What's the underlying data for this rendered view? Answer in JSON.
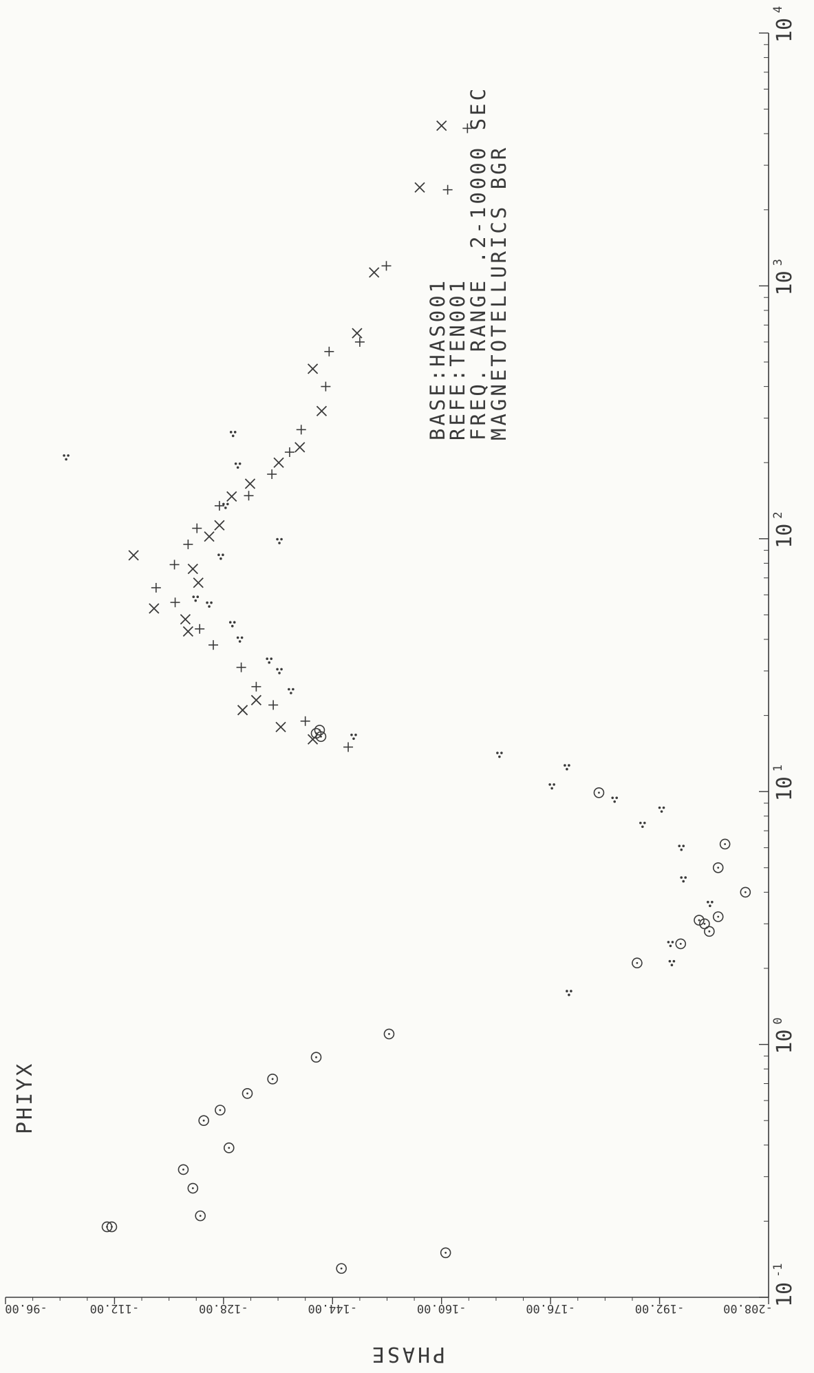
{
  "page": {
    "panel_label": "PHIYX",
    "info_lines": [
      "BASE:HAS001",
      "REFE:TEN001",
      "FREQ. RANGE .2-10000 SEC",
      "MAGNETOTELLURICS BGR"
    ]
  },
  "chart_data": {
    "type": "scatter",
    "title": "",
    "xlabel": "",
    "ylabel": "PHASE",
    "x_scale": "log",
    "xlim": [
      0.1,
      10000
    ],
    "ylim": [
      -208,
      -96
    ],
    "x_ticks": [
      {
        "value": 0.1,
        "base": "10",
        "exp": "-1"
      },
      {
        "value": 1,
        "base": "10",
        "exp": "0"
      },
      {
        "value": 10,
        "base": "10",
        "exp": "1"
      },
      {
        "value": 100,
        "base": "10",
        "exp": "2"
      },
      {
        "value": 1000,
        "base": "10",
        "exp": "3"
      },
      {
        "value": 10000,
        "base": "10",
        "exp": "4"
      }
    ],
    "y_ticks": [
      {
        "value": -96,
        "label": "-96.00"
      },
      {
        "value": -112,
        "label": "-112.00"
      },
      {
        "value": -128,
        "label": "-128.00"
      },
      {
        "value": -144,
        "label": "-144.00"
      },
      {
        "value": -160,
        "label": "-160.00"
      },
      {
        "value": -176,
        "label": "-176.00"
      },
      {
        "value": -192,
        "label": "-192.00"
      },
      {
        "value": -208,
        "label": "-208.00"
      }
    ],
    "grid": false,
    "series": [
      {
        "marker": "circle",
        "points": [
          [
            0.13,
            -145.3
          ],
          [
            0.15,
            -160.6
          ],
          [
            0.19,
            -110.9
          ],
          [
            0.19,
            -111.6
          ],
          [
            0.21,
            -124.6
          ],
          [
            0.27,
            -123.5
          ],
          [
            0.32,
            -122.1
          ],
          [
            0.39,
            -128.8
          ],
          [
            0.5,
            -125.1
          ],
          [
            0.55,
            -127.5
          ],
          [
            0.64,
            -131.5
          ],
          [
            0.73,
            -135.2
          ],
          [
            0.89,
            -141.6
          ],
          [
            1.1,
            -152.3
          ],
          [
            2.1,
            -188.7
          ],
          [
            2.5,
            -195.1
          ],
          [
            2.8,
            -199.3
          ],
          [
            3.0,
            -198.6
          ],
          [
            3.1,
            -197.8
          ],
          [
            3.2,
            -200.6
          ],
          [
            4.0,
            -204.6
          ],
          [
            5.0,
            -200.6
          ],
          [
            6.2,
            -201.6
          ],
          [
            9.9,
            -183.1
          ],
          [
            16.5,
            -142.3
          ],
          [
            17.0,
            -141.6
          ],
          [
            17.5,
            -142.1
          ]
        ]
      },
      {
        "marker": "cross",
        "points": [
          [
            16.1,
            -141.1
          ],
          [
            18.0,
            -136.4
          ],
          [
            21.0,
            -130.8
          ],
          [
            23.0,
            -132.8
          ],
          [
            43.0,
            -122.8
          ],
          [
            48.0,
            -122.4
          ],
          [
            53.0,
            -117.8
          ],
          [
            67.0,
            -124.3
          ],
          [
            76.0,
            -123.5
          ],
          [
            86.0,
            -114.8
          ],
          [
            102.0,
            -125.9
          ],
          [
            113.0,
            -127.4
          ],
          [
            147.0,
            -129.2
          ],
          [
            165.0,
            -131.9
          ],
          [
            200.0,
            -136.1
          ],
          [
            230.0,
            -139.2
          ],
          [
            320.0,
            -142.4
          ],
          [
            470.0,
            -141.1
          ],
          [
            650.0,
            -147.6
          ],
          [
            1130.0,
            -150.1
          ],
          [
            2450.0,
            -156.8
          ],
          [
            4300.0,
            -160.0
          ]
        ]
      },
      {
        "marker": "plus",
        "points": [
          [
            15.0,
            -146.3
          ],
          [
            19.0,
            -140.0
          ],
          [
            22.0,
            -135.3
          ],
          [
            26.0,
            -132.8
          ],
          [
            31.0,
            -130.6
          ],
          [
            38.0,
            -126.5
          ],
          [
            44.0,
            -124.5
          ],
          [
            56.0,
            -120.9
          ],
          [
            64.0,
            -118.1
          ],
          [
            79.0,
            -120.8
          ],
          [
            95.0,
            -122.8
          ],
          [
            110.0,
            -124.1
          ],
          [
            135.0,
            -127.4
          ],
          [
            148.0,
            -131.7
          ],
          [
            180.0,
            -135.1
          ],
          [
            220.0,
            -137.7
          ],
          [
            270.0,
            -139.4
          ],
          [
            400.0,
            -143.0
          ],
          [
            550.0,
            -143.5
          ],
          [
            600.0,
            -148.0
          ],
          [
            1200.0,
            -151.9
          ],
          [
            2400.0,
            -160.9
          ],
          [
            4200.0,
            -163.8
          ]
        ]
      },
      {
        "marker": "dots",
        "points": [
          [
            1.6,
            -178.7
          ],
          [
            2.1,
            -193.8
          ],
          [
            2.5,
            -193.6
          ],
          [
            3.6,
            -199.4
          ],
          [
            4.5,
            -195.5
          ],
          [
            6.0,
            -195.2
          ],
          [
            7.4,
            -189.5
          ],
          [
            8.5,
            -192.3
          ],
          [
            9.3,
            -185.4
          ],
          [
            10.5,
            -176.2
          ],
          [
            12.5,
            -178.4
          ],
          [
            14.0,
            -168.5
          ],
          [
            16.5,
            -147.1
          ],
          [
            25.0,
            -137.9
          ],
          [
            30.0,
            -136.2
          ],
          [
            33.0,
            -134.7
          ],
          [
            40.0,
            -130.4
          ],
          [
            46.0,
            -129.3
          ],
          [
            55.0,
            -125.9
          ],
          [
            58.0,
            -123.9
          ],
          [
            85.0,
            -127.6
          ],
          [
            98.0,
            -136.2
          ],
          [
            135.0,
            -128.3
          ],
          [
            195.0,
            -130.1
          ],
          [
            210.0,
            -104.9
          ],
          [
            260.0,
            -129.4
          ]
        ]
      }
    ]
  }
}
